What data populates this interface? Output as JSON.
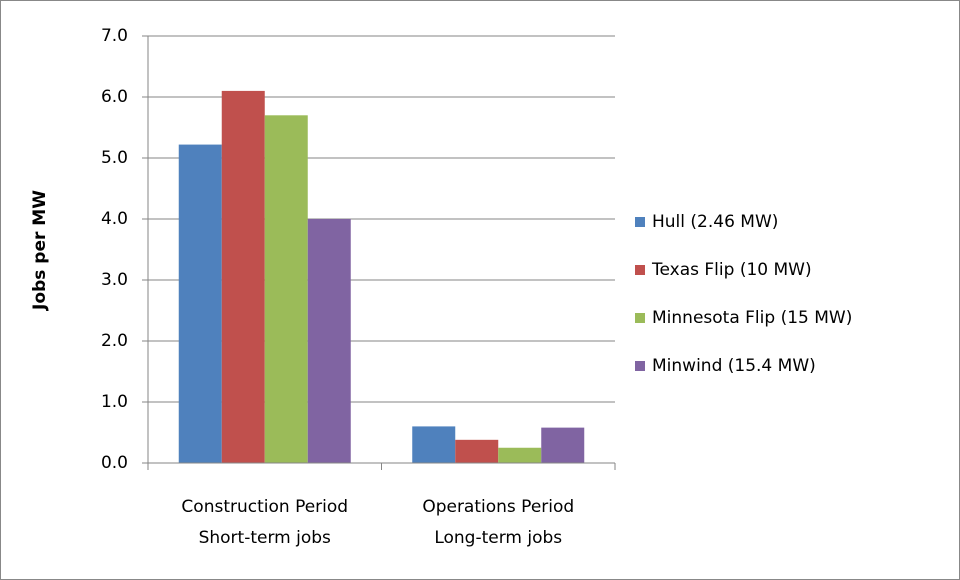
{
  "chart_data": {
    "type": "bar",
    "y_label": "Jobs per MW",
    "categories": [
      [
        "Construction Period",
        "Short-term jobs"
      ],
      [
        "Operations Period",
        "Long-term jobs"
      ]
    ],
    "series": [
      {
        "name": "Hull (2.46 MW)",
        "color": "#4f81bd",
        "values": [
          5.22,
          0.6
        ]
      },
      {
        "name": "Texas Flip (10 MW)",
        "color": "#c0504d",
        "values": [
          6.1,
          0.38
        ]
      },
      {
        "name": "Minnesota Flip (15 MW)",
        "color": "#9bbb59",
        "values": [
          5.7,
          0.25
        ]
      },
      {
        "name": "Minwind (15.4 MW)",
        "color": "#8064a2",
        "values": [
          4.0,
          0.58
        ]
      }
    ],
    "ylim": [
      0,
      7
    ],
    "yticks": [
      {
        "value": 0,
        "label": "0.0"
      },
      {
        "value": 1,
        "label": "1.0"
      },
      {
        "value": 2,
        "label": "2.0"
      },
      {
        "value": 3,
        "label": "3.0"
      },
      {
        "value": 4,
        "label": "4.0"
      },
      {
        "value": 5,
        "label": "5.0"
      },
      {
        "value": 6,
        "label": "6.0"
      },
      {
        "value": 7,
        "label": "7.0"
      }
    ],
    "grid": true,
    "legend": "right"
  }
}
